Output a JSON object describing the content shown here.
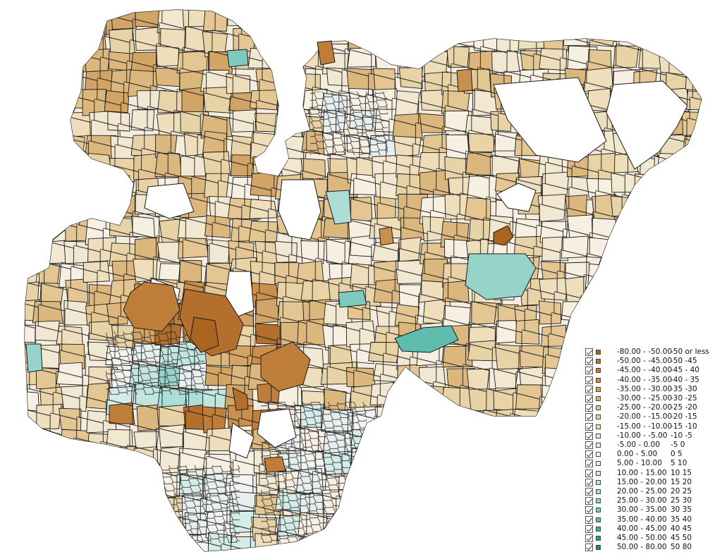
{
  "map": {
    "land_fill": "#f4ecdf",
    "outline_color": "#1a1a1a"
  },
  "legend": {
    "items": [
      {
        "range": "-80.00 - -50.00",
        "short": "-50 or less",
        "color": "#a9651f"
      },
      {
        "range": "-50.00 - -45.00",
        "short": "-50 -45",
        "color": "#b46f2c"
      },
      {
        "range": "-45.00 - -40.00",
        "short": "-45 - 40",
        "color": "#bf7d3a"
      },
      {
        "range": "-40.00 - -35.00",
        "short": "-40 - 35",
        "color": "#c88f4e"
      },
      {
        "range": "-35.00 - -30.00",
        "short": "-35 -30",
        "color": "#d2a466"
      },
      {
        "range": "-30.00 - -25.00",
        "short": "-30 -25",
        "color": "#dbb67d"
      },
      {
        "range": "-25.00 - -20.00",
        "short": "-25 -20",
        "color": "#e3c692"
      },
      {
        "range": "-20.00 - -15.00",
        "short": "-20 -15",
        "color": "#e8d3a7"
      },
      {
        "range": "-15.00 - -10.00",
        "short": "-15 -10",
        "color": "#eedebc"
      },
      {
        "range": "-10.00 - -5.00",
        "short": "-10 -5",
        "color": "#f2e7d0"
      },
      {
        "range": "-5.00 - 0.00",
        "short": "-5 0",
        "color": "#f6efe2"
      },
      {
        "range": "0.00 - 5.00",
        "short": "0 5",
        "color": "#f3f4f1"
      },
      {
        "range": "5.00 - 10.00",
        "short": "5 10",
        "color": "#e6eeee"
      },
      {
        "range": "10.00 - 15.00",
        "short": "10 15",
        "color": "#d4ebe8"
      },
      {
        "range": "15.00 - 20.00",
        "short": "15 20",
        "color": "#c2e5e0"
      },
      {
        "range": "20.00 - 25.00",
        "short": "20 25",
        "color": "#acddd6"
      },
      {
        "range": "25.00 - 30.00",
        "short": "25 30",
        "color": "#96d4cb"
      },
      {
        "range": "30.00 - 35.00",
        "short": "30 35",
        "color": "#7dcabf"
      },
      {
        "range": "35.00 - 40.00",
        "short": "35 40",
        "color": "#5fbdb0"
      },
      {
        "range": "40.00 - 45.00",
        "short": "40 45",
        "color": "#41ae9f"
      },
      {
        "range": "45.00 - 50.00",
        "short": "45 50",
        "color": "#2a9d8d"
      },
      {
        "range": "50.00 - 80.00",
        "short": "50 80",
        "color": "#15897a"
      }
    ]
  }
}
